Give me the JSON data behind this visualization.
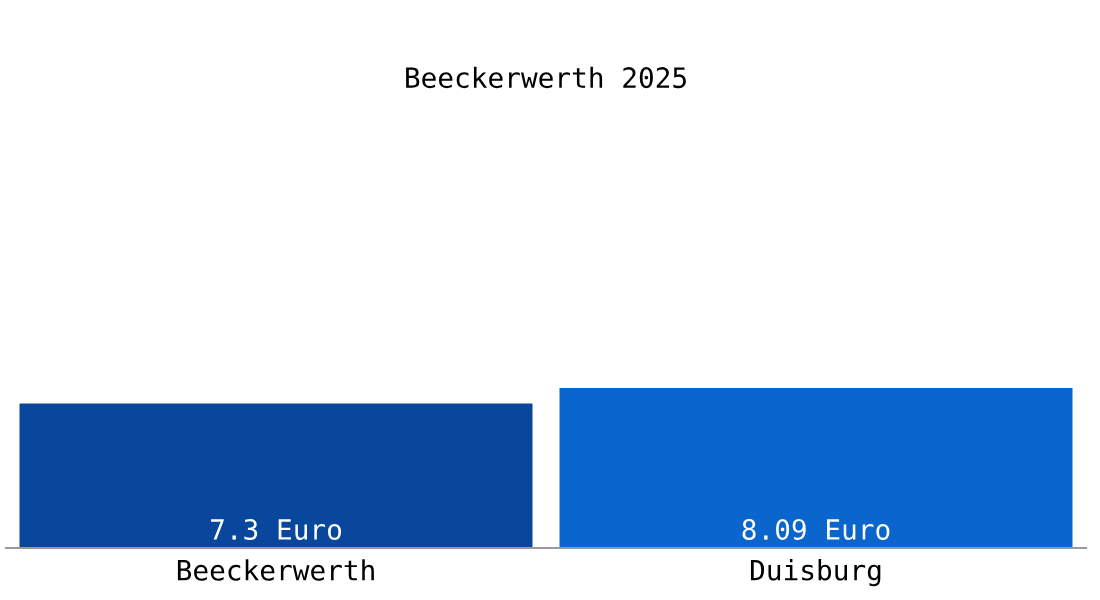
{
  "chart_data": {
    "type": "bar",
    "title": "Beeckerwerth 2025",
    "categories": [
      "Beeckerwerth",
      "Duisburg"
    ],
    "values": [
      7.3,
      8.09
    ],
    "colors": [
      "#08479b",
      "#0a66cc"
    ],
    "value_labels": [
      "7.3 Euro",
      "8.09 Euro"
    ],
    "grid": false,
    "legend": false
  }
}
